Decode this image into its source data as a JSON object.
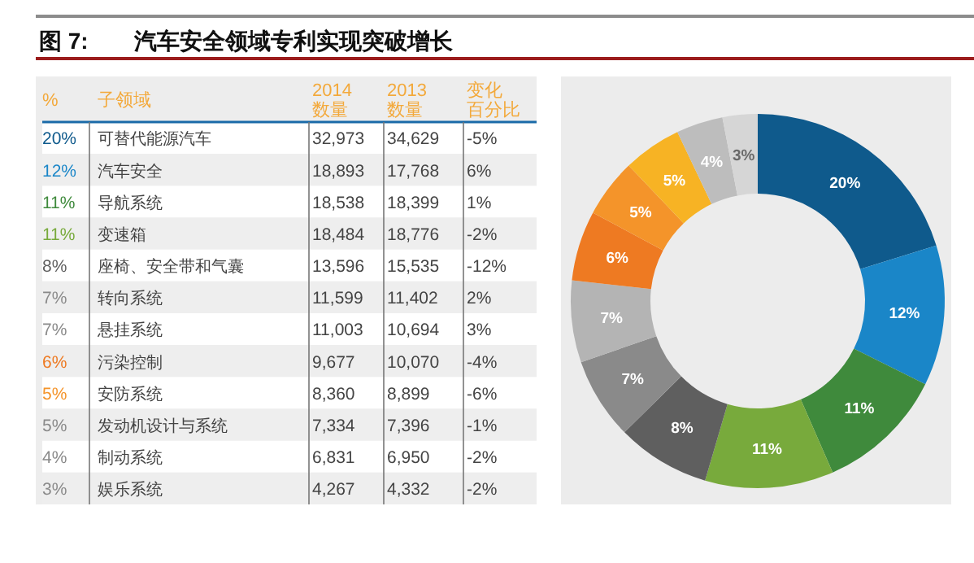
{
  "chart_data": [
    {
      "type": "heatmap",
      "title": "图 7:　　汽车安全领域专利实现突破增长",
      "ylabel": "子领域",
      "annotations": [
        "%"
      ],
      "categories": [
        "2014 数量",
        "2013 数量",
        "变化百分比"
      ],
      "y_categories": [
        "可替代能源汽车",
        "汽车安全",
        "导航系统",
        "变速箱",
        "座椅、安全带和气囊",
        "转向系统",
        "悬挂系统",
        "污染控制",
        "安防系统",
        "发动机设计与系统",
        "制动系统",
        "娱乐系统"
      ],
      "cells": [
        [
          32973,
          34629,
          -5
        ],
        [
          18893,
          17768,
          6
        ],
        [
          18538,
          18399,
          1
        ],
        [
          18484,
          18776,
          -2
        ],
        [
          13596,
          15535,
          -12
        ],
        [
          11599,
          11402,
          2
        ],
        [
          11003,
          10694,
          3
        ],
        [
          9677,
          10070,
          -4
        ],
        [
          8360,
          8899,
          -6
        ],
        [
          7334,
          7396,
          -1
        ],
        [
          6831,
          6950,
          -2
        ],
        [
          4267,
          4332,
          -2
        ]
      ],
      "cell_labels": [
        [
          "32,973",
          "34,629",
          "-5%"
        ],
        [
          "18,893",
          "17,768",
          "6%"
        ],
        [
          "18,538",
          "18,399",
          "1%"
        ],
        [
          "18,484",
          "18,776",
          "-2%"
        ],
        [
          "13,596",
          "15,535",
          "-12%"
        ],
        [
          "11,599",
          "11,402",
          "2%"
        ],
        [
          "11,003",
          "10,694",
          "3%"
        ],
        [
          "9,677",
          "10,070",
          "-4%"
        ],
        [
          "8,360",
          "8,899",
          "-6%"
        ],
        [
          "7,334",
          "7,396",
          "-1%"
        ],
        [
          "6,831",
          "6,950",
          "-2%"
        ],
        [
          "4,267",
          "4,332",
          "-2%"
        ]
      ]
    },
    {
      "type": "donut",
      "categories": [
        null,
        null,
        null,
        null,
        null,
        null,
        null,
        null,
        null,
        null,
        null,
        null
      ],
      "values": [
        20,
        12,
        11,
        11,
        8,
        7,
        7,
        6,
        5,
        5,
        4,
        3
      ],
      "value_labels": [
        "20%",
        "12%",
        "11%",
        "11%",
        "8%",
        "7%",
        "7%",
        "6%",
        "5%",
        "5%",
        "4%",
        "3%"
      ],
      "colors": [
        "#0f5a8c",
        "#1a86c8",
        "#3f8a3c",
        "#78aa3c",
        "#5f5f5f",
        "#8a8a8a",
        "#b4b4b4",
        "#ee7a22",
        "#f4942a",
        "#f7b324",
        "#bdbdbd",
        "#d6d6d6"
      ]
    }
  ]
}
